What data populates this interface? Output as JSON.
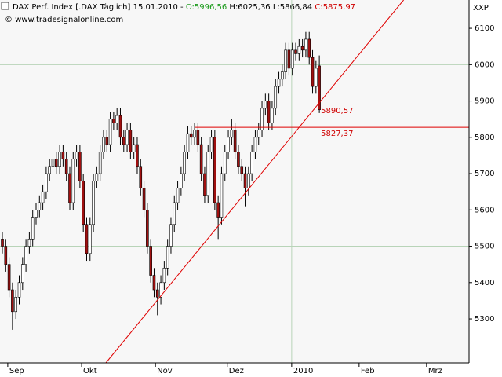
{
  "chart_data": {
    "type": "candlestick",
    "title": "DAX Perf. Index [.DAX Täglich]",
    "date": "15.01.2010 -",
    "quote": {
      "open": "O:5996,56",
      "high": "H:6025,36",
      "low": "L:5866,84",
      "close": "C:5875,97"
    },
    "copyright": "© www.tradesignalonline.com",
    "axis_code": "XXP",
    "up_color": "#ffffff",
    "down_color": "#a01010",
    "line_color": "#e00000",
    "open": [
      5520,
      5500,
      5450,
      5380,
      5320,
      5360,
      5400,
      5450,
      5500,
      5520,
      5580,
      5600,
      5620,
      5650,
      5700,
      5720,
      5740,
      5720,
      5760,
      5740,
      5700,
      5620,
      5740,
      5760,
      5680,
      5560,
      5480,
      5560,
      5680,
      5700,
      5760,
      5800,
      5780,
      5850,
      5840,
      5860,
      5800,
      5780,
      5820,
      5760,
      5780,
      5720,
      5660,
      5600,
      5500,
      5420,
      5380,
      5360,
      5400,
      5440,
      5500,
      5560,
      5620,
      5660,
      5700,
      5760,
      5810,
      5800,
      5820,
      5780,
      5700,
      5640,
      5760,
      5800,
      5620,
      5580,
      5700,
      5760,
      5800,
      5820,
      5760,
      5720,
      5700,
      5660,
      5700,
      5760,
      5800,
      5820,
      5880,
      5900,
      5840,
      5880,
      5940,
      5960,
      5980,
      6040,
      5990,
      6040,
      6030,
      6050,
      6040,
      6070,
      6020,
      5940,
      5996.56
    ],
    "high": [
      5540,
      5520,
      5470,
      5400,
      5380,
      5420,
      5470,
      5520,
      5540,
      5600,
      5620,
      5640,
      5670,
      5720,
      5740,
      5760,
      5760,
      5780,
      5780,
      5760,
      5720,
      5760,
      5780,
      5780,
      5700,
      5580,
      5580,
      5700,
      5720,
      5780,
      5820,
      5820,
      5870,
      5870,
      5880,
      5880,
      5820,
      5840,
      5840,
      5800,
      5800,
      5740,
      5680,
      5620,
      5520,
      5440,
      5400,
      5420,
      5460,
      5520,
      5580,
      5640,
      5680,
      5720,
      5780,
      5830,
      5830,
      5840,
      5840,
      5800,
      5720,
      5780,
      5820,
      5820,
      5640,
      5720,
      5780,
      5820,
      5850,
      5840,
      5780,
      5740,
      5720,
      5720,
      5780,
      5820,
      5840,
      5900,
      5920,
      5920,
      5900,
      5960,
      5980,
      6000,
      6060,
      6060,
      6060,
      6060,
      6070,
      6070,
      6090,
      6090,
      6040,
      6010,
      6025.36
    ],
    "low": [
      5480,
      5430,
      5360,
      5270,
      5300,
      5340,
      5380,
      5430,
      5480,
      5500,
      5560,
      5580,
      5600,
      5630,
      5680,
      5700,
      5700,
      5700,
      5720,
      5680,
      5600,
      5600,
      5720,
      5660,
      5540,
      5460,
      5460,
      5540,
      5660,
      5680,
      5740,
      5760,
      5760,
      5820,
      5820,
      5780,
      5760,
      5760,
      5740,
      5740,
      5700,
      5640,
      5580,
      5480,
      5400,
      5360,
      5310,
      5340,
      5380,
      5420,
      5480,
      5540,
      5600,
      5640,
      5680,
      5740,
      5780,
      5780,
      5760,
      5680,
      5620,
      5620,
      5740,
      5600,
      5520,
      5560,
      5680,
      5740,
      5780,
      5740,
      5700,
      5680,
      5610,
      5640,
      5680,
      5740,
      5780,
      5800,
      5860,
      5820,
      5820,
      5860,
      5920,
      5940,
      5960,
      5970,
      5970,
      6010,
      6010,
      6020,
      6020,
      6000,
      5920,
      5920,
      5866.84
    ],
    "close": [
      5500,
      5450,
      5380,
      5320,
      5360,
      5400,
      5450,
      5500,
      5520,
      5580,
      5600,
      5620,
      5650,
      5700,
      5720,
      5740,
      5720,
      5760,
      5740,
      5700,
      5620,
      5740,
      5760,
      5680,
      5560,
      5480,
      5560,
      5680,
      5700,
      5760,
      5800,
      5780,
      5850,
      5840,
      5860,
      5800,
      5780,
      5820,
      5760,
      5780,
      5720,
      5660,
      5600,
      5500,
      5420,
      5380,
      5360,
      5400,
      5440,
      5500,
      5560,
      5620,
      5660,
      5700,
      5760,
      5810,
      5800,
      5820,
      5780,
      5700,
      5640,
      5760,
      5800,
      5620,
      5580,
      5700,
      5760,
      5800,
      5820,
      5760,
      5720,
      5700,
      5660,
      5700,
      5760,
      5800,
      5820,
      5880,
      5900,
      5840,
      5880,
      5940,
      5960,
      5980,
      6040,
      5990,
      6040,
      6030,
      6050,
      6040,
      6070,
      6020,
      5940,
      5990,
      5875.97
    ],
    "xlim": [
      -0.7,
      138.4
    ],
    "xticks": [
      {
        "value": 1.6,
        "label": "Sep"
      },
      {
        "value": 23.5,
        "label": "Okt"
      },
      {
        "value": 45.4,
        "label": "Nov"
      },
      {
        "value": 66.7,
        "label": "Dez"
      },
      {
        "value": 85.8,
        "label": "2010"
      },
      {
        "value": 105.8,
        "label": "Feb"
      },
      {
        "value": 125.8,
        "label": "Mrz"
      }
    ],
    "ylim": [
      5179,
      6178
    ],
    "yticks": [
      5300,
      5400,
      5500,
      5600,
      5700,
      5800,
      5900,
      6000,
      6100
    ],
    "ygrid": [
      5500,
      6000
    ],
    "xgrid": [
      85.8
    ],
    "trendline": {
      "x": [
        30.7,
        119
      ],
      "y": [
        5179,
        6178
      ]
    },
    "hline": {
      "x": 57,
      "value": 5827.37
    },
    "levels": [
      {
        "value": 5890.57,
        "label": "5890,57"
      },
      {
        "value": 5827.37,
        "label": "5827,37"
      }
    ]
  }
}
